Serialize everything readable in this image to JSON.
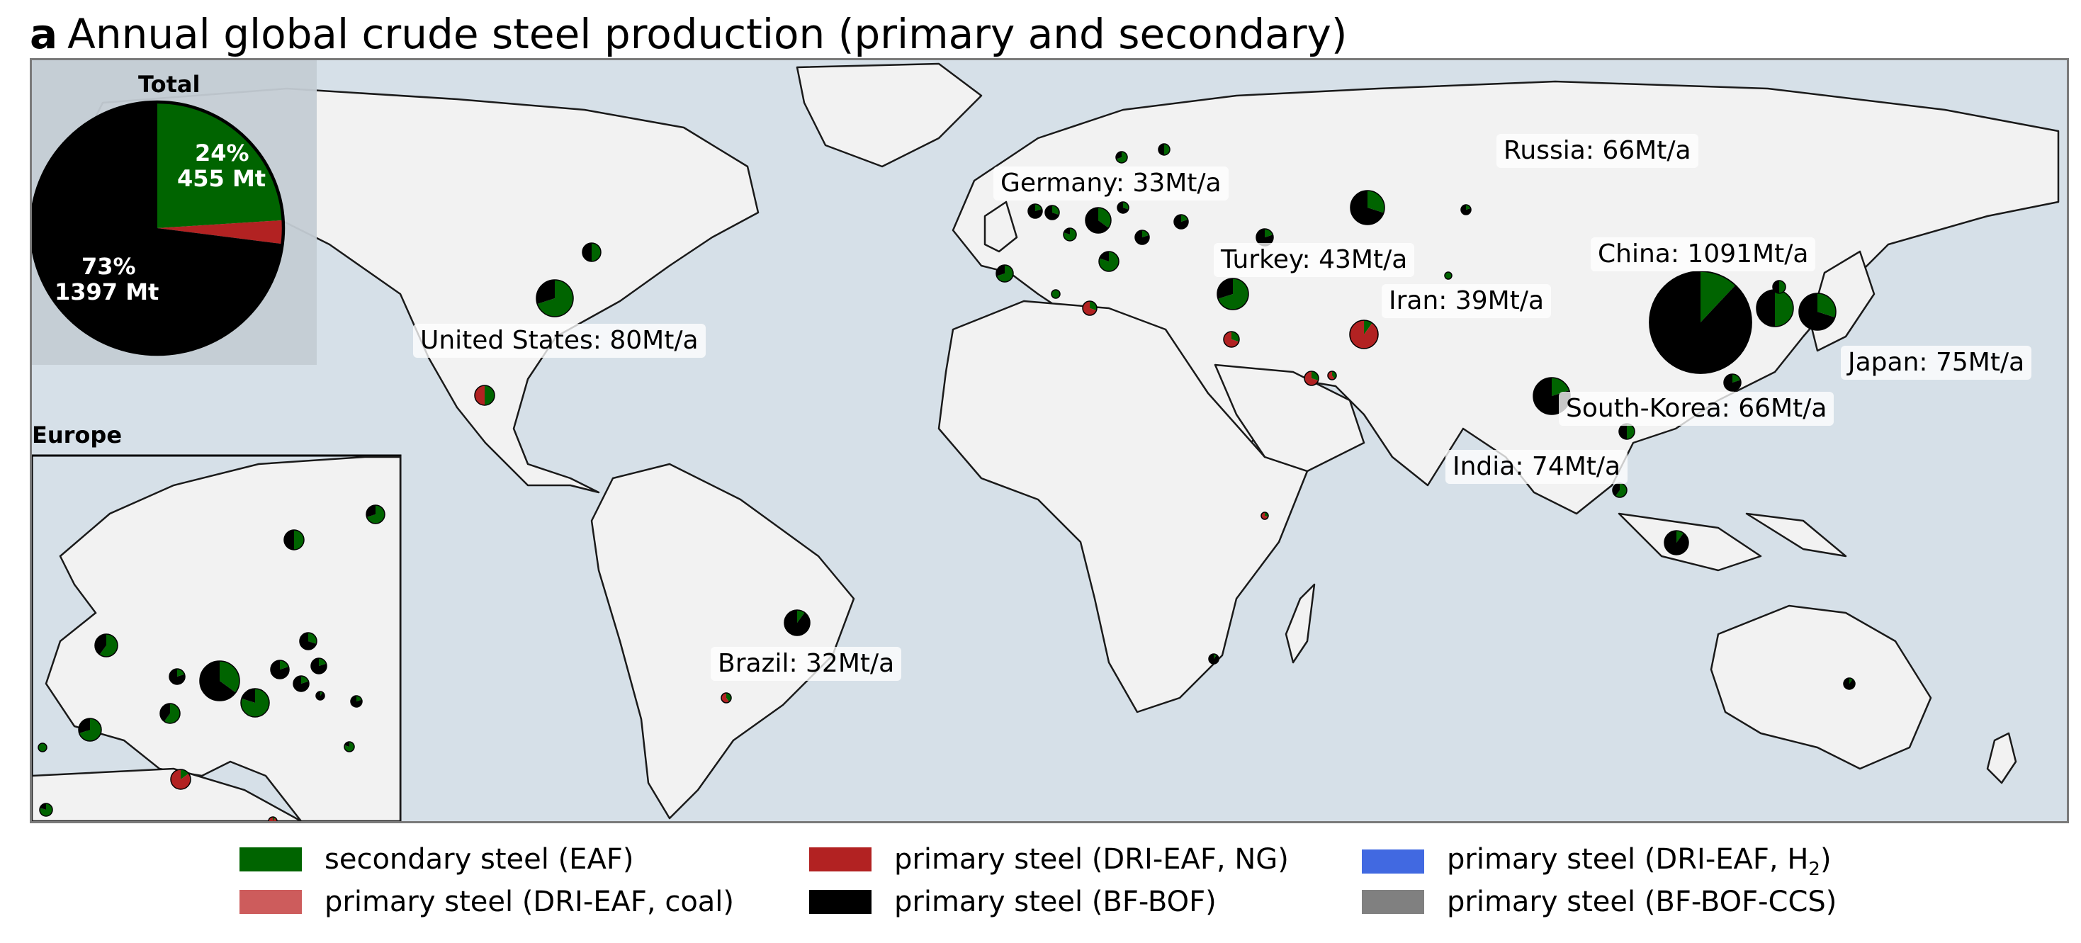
{
  "title": {
    "letter": "a",
    "text": "Annual global crude steel production (primary and secondary)"
  },
  "colors": {
    "ocean": "#d6e0e8",
    "land": "#f2f2f2",
    "eaf": "#006400",
    "dri_coal": "#cd5c5c",
    "dri_ng": "#b22222",
    "bf_bof": "#000000",
    "dri_h2": "#4169e1",
    "ccs": "#808080"
  },
  "total_inset": {
    "title": "Total",
    "secondary_label_pct": "24%",
    "secondary_label_mt": "455 Mt",
    "primary_label_pct": "73%",
    "primary_label_mt": "1397 Mt"
  },
  "europe_inset": {
    "title": "Europe"
  },
  "legend": [
    {
      "label": "secondary steel (EAF)",
      "color": "#006400"
    },
    {
      "label": "primary steel (DRI-EAF, coal)",
      "color": "#cd5c5c"
    },
    {
      "label": "primary steel (DRI-EAF, NG)",
      "color": "#b22222"
    },
    {
      "label": "primary steel (BF-BOF)",
      "color": "#000000"
    },
    {
      "label": "primary steel (DRI-EAF, H",
      "sub": "2",
      "label_end": ")",
      "color": "#4169e1"
    },
    {
      "label": "primary steel (BF-BOF-CCS)",
      "color": "#808080"
    }
  ],
  "country_labels": [
    {
      "id": "us",
      "text": "United States: 80Mt/a"
    },
    {
      "id": "germany",
      "text": "Germany: 33Mt/a"
    },
    {
      "id": "turkey",
      "text": "Turkey: 43Mt/a"
    },
    {
      "id": "iran",
      "text": "Iran: 39Mt/a"
    },
    {
      "id": "russia",
      "text": "Russia: 66Mt/a"
    },
    {
      "id": "china",
      "text": "China: 1091Mt/a"
    },
    {
      "id": "japan",
      "text": "Japan: 75Mt/a"
    },
    {
      "id": "skorea",
      "text": "South-Korea: 66Mt/a"
    },
    {
      "id": "india",
      "text": "India: 74Mt/a"
    },
    {
      "id": "brazil",
      "text": "Brazil: 32Mt/a"
    }
  ],
  "chart_data": {
    "type": "pie",
    "title": "Total",
    "slices": [
      {
        "name": "secondary steel (EAF)",
        "percent": 24,
        "value_mt": 455,
        "color": "#006400"
      },
      {
        "name": "primary steel (DRI-EAF, NG)",
        "percent": 3,
        "color": "#b22222"
      },
      {
        "name": "primary steel (BF-BOF)",
        "percent": 73,
        "value_mt": 1397,
        "color": "#000000"
      }
    ]
  }
}
